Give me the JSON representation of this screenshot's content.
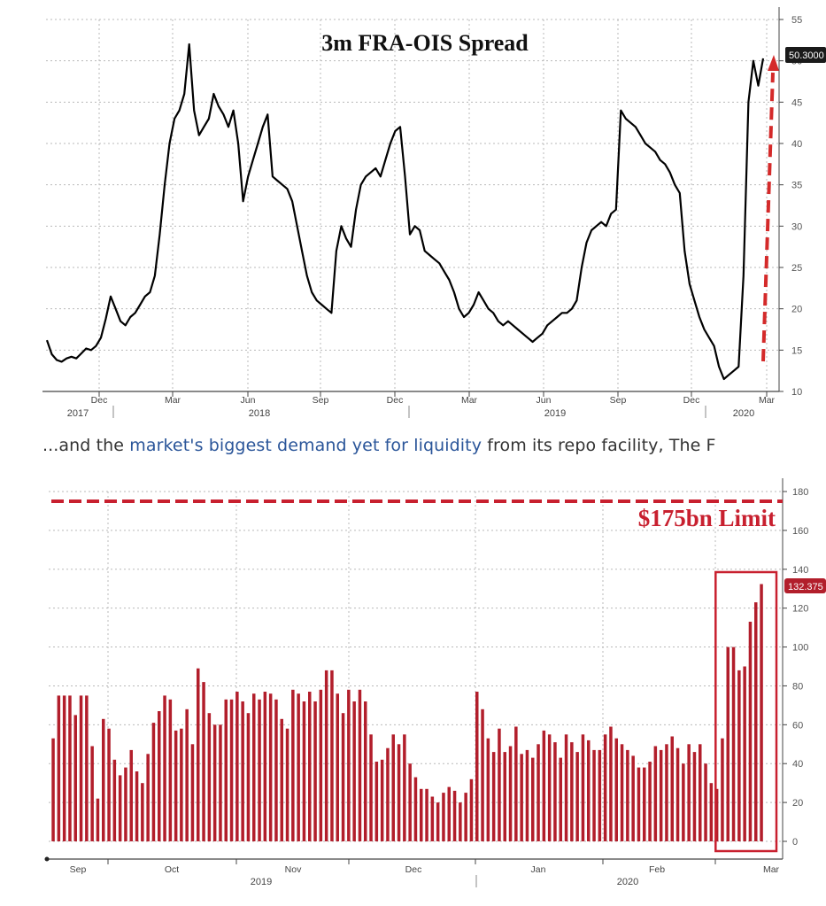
{
  "colors": {
    "line": "#000000",
    "bar": "#b21e2b",
    "accent": "#c8202f",
    "grid": "#b9b9b9",
    "axis": "#444444"
  },
  "caption": {
    "before": "...and the ",
    "link": "market's biggest demand yet for liquidity",
    "after": " from its repo facility, The F"
  },
  "chart_data": [
    {
      "type": "line",
      "title": "3m FRA-OIS Spread",
      "ylim": [
        10,
        55
      ],
      "yticks": [
        "10",
        "15",
        "20",
        "25",
        "30",
        "35",
        "40",
        "45",
        "50",
        "55"
      ],
      "grid": true,
      "last_value_label": "50.3000",
      "x_month_labels": [
        "Dec",
        "Mar",
        "Jun",
        "Sep",
        "Dec",
        "Mar",
        "Jun",
        "Sep",
        "Dec",
        "Mar"
      ],
      "x_year_labels": [
        "2017",
        "2018",
        "2019",
        "2020"
      ],
      "series": [
        {
          "values": [
            16.2,
            14.5,
            13.8,
            13.6,
            14.0,
            14.2,
            14.0,
            14.6,
            15.2,
            15.0,
            15.5,
            16.5,
            18.8,
            21.5,
            20.0,
            18.5,
            18.0,
            19.0,
            19.5,
            20.5,
            21.5,
            22.0,
            24.0,
            29.0,
            35.0,
            40.0,
            43.0,
            44.0,
            46.0,
            52.0,
            44.0,
            41.0,
            42.0,
            43.0,
            46.0,
            44.5,
            43.5,
            42.0,
            44.0,
            40.0,
            33.0,
            36.0,
            38.0,
            40.0,
            42.0,
            43.5,
            36.0,
            35.5,
            35.0,
            34.5,
            33.0,
            30.0,
            27.0,
            24.0,
            22.0,
            21.0,
            20.5,
            20.0,
            19.5,
            27.0,
            30.0,
            28.5,
            27.5,
            32.0,
            35.0,
            36.0,
            36.5,
            37.0,
            36.0,
            38.0,
            40.0,
            41.5,
            42.0,
            36.0,
            29.0,
            30.0,
            29.5,
            27.0,
            26.5,
            26.0,
            25.5,
            24.5,
            23.5,
            22.0,
            20.0,
            19.0,
            19.5,
            20.5,
            22.0,
            21.0,
            20.0,
            19.5,
            18.5,
            18.0,
            18.5,
            18.0,
            17.5,
            17.0,
            16.5,
            16.0,
            16.5,
            17.0,
            18.0,
            18.5,
            19.0,
            19.5,
            19.5,
            20.0,
            21.0,
            25.0,
            28.0,
            29.5,
            30.0,
            30.5,
            30.0,
            31.5,
            32.0,
            44.0,
            43.0,
            42.5,
            42.0,
            41.0,
            40.0,
            39.5,
            39.0,
            38.0,
            37.5,
            36.5,
            35.0,
            34.0,
            27.0,
            23.0,
            21.0,
            19.0,
            17.5,
            16.5,
            15.5,
            13.0,
            11.5,
            12.0,
            12.5,
            13.0,
            24.0,
            45.0,
            50.0,
            47.0,
            50.3
          ]
        }
      ]
    },
    {
      "type": "bar",
      "annotation": "$175bn Limit",
      "limit_value": 175,
      "ylim": [
        0,
        180
      ],
      "yticks": [
        "0",
        "20",
        "40",
        "60",
        "80",
        "100",
        "120",
        "140",
        "160",
        "180"
      ],
      "grid": true,
      "last_value_label": "132.375",
      "x_month_labels": [
        "Sep",
        "Oct",
        "Nov",
        "Dec",
        "Jan",
        "Feb",
        "Mar"
      ],
      "x_year_labels": [
        "2019",
        "2020"
      ],
      "values": [
        53,
        75,
        75,
        75,
        65,
        75,
        75,
        49,
        22,
        63,
        58,
        42,
        34,
        38,
        47,
        36,
        30,
        45,
        61,
        67,
        75,
        73,
        57,
        58,
        68,
        50,
        89,
        82,
        66,
        60,
        60,
        73,
        73,
        77,
        72,
        66,
        76,
        73,
        77,
        76,
        73,
        63,
        58,
        78,
        76,
        72,
        77,
        72,
        78,
        88,
        88,
        76,
        66,
        78,
        72,
        78,
        72,
        55,
        41,
        42,
        48,
        55,
        50,
        55,
        40,
        33,
        27,
        27,
        23,
        20,
        25,
        28,
        26,
        20,
        25,
        32,
        77,
        68,
        53,
        46,
        58,
        46,
        49,
        59,
        45,
        47,
        43,
        50,
        57,
        55,
        51,
        43,
        55,
        51,
        46,
        55,
        52,
        47,
        47,
        55,
        59,
        53,
        50,
        47,
        44,
        38,
        38,
        41,
        49,
        47,
        50,
        54,
        48,
        40,
        50,
        46,
        50,
        40,
        30,
        27,
        53,
        100,
        100,
        88,
        90,
        113,
        123,
        132.4
      ],
      "highlight_from_index": 121
    }
  ]
}
